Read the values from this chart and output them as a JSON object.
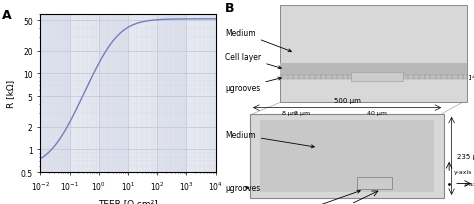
{
  "panel_a": {
    "xlabel": "TEER [Ω cm²]",
    "ylabel": "R [kΩ]",
    "label": "A",
    "xlim": [
      0.01,
      10000
    ],
    "ylim": [
      0.5,
      60
    ],
    "yticks": [
      0.5,
      1,
      2,
      5,
      10,
      20,
      50
    ],
    "ytick_labels": [
      "0.5",
      "1",
      "2",
      "5",
      "10",
      "20",
      "50"
    ],
    "xticks": [
      0.01,
      0.1,
      1,
      10,
      100,
      1000,
      10000
    ],
    "xtick_labels": [
      "$10^{-2}$",
      "$10^{-1}$",
      "$10^{0}$",
      "$10^{1}$",
      "$10^{2}$",
      "$10^{3}$",
      "$10^{4}$"
    ],
    "line_color": "#7080bb",
    "R_min": 0.58,
    "R_max": 52.5,
    "R_half": 3.0,
    "bg_color": "#e6e8f0",
    "grid_major_color": "#c0c4d8",
    "grid_minor_color": "#d4d8e8"
  }
}
